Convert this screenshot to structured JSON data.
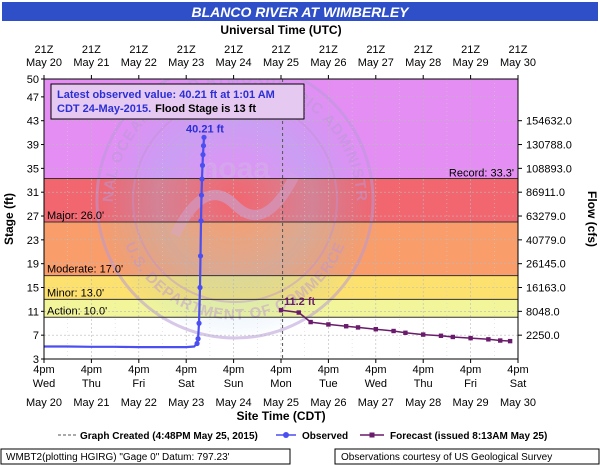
{
  "title": "BLANCO RIVER AT WIMBERLEY",
  "top_axis_title": "Universal Time (UTC)",
  "bottom_axis_title": "Site Time (CDT)",
  "left_axis_title": "Stage (ft)",
  "right_axis_title": "Flow (cfs)",
  "info_box": {
    "line1": "Latest observed value: 40.21 ft at 1:01 AM",
    "line2_blue": "CDT 24-May-2015.",
    "line2_black": "Flood Stage is 13 ft"
  },
  "legend": {
    "created": "Graph Created (4:48PM May 25, 2015)",
    "observed": "Observed",
    "forecast": "Forecast (issued 8:13AM May 25)"
  },
  "footer": {
    "left": "WMBT2(plotting HGIRG) \"Gage 0\" Datum: 797.23'",
    "right": "Observations courtesy of US Geological Survey"
  },
  "watermark": {
    "arc_top": "NATIONAL OCEANIC AND ATMOSPHERIC ADMINISTRATION",
    "arc_bottom": "U.S. DEPARTMENT OF COMMERCE",
    "center": "noaa"
  },
  "colors": {
    "record_band": "#e48ef4",
    "major_band": "#f1666f",
    "moderate_band": "#f99d6b",
    "minor_band": "#fde16f",
    "action_band": "#f2f59a",
    "normal_band": "#ffffff",
    "observed": "#4b4ef0",
    "forecast": "#6a1b6b",
    "title_bar": "#2f4fc8"
  },
  "chart_data": {
    "type": "line",
    "title": "BLANCO RIVER AT WIMBERLEY",
    "xlabel": "Site Time (CDT)",
    "ylabel": "Stage (ft)",
    "y2label": "Flow (cfs)",
    "ylim": [
      3,
      50
    ],
    "y_ticks": [
      "50",
      "47",
      "43",
      "39",
      "35",
      "31",
      "27",
      "23",
      "19",
      "15",
      "11",
      "7",
      "3"
    ],
    "y2_ticks": [
      {
        "stage": 43,
        "label": "154632.0"
      },
      {
        "stage": 39,
        "label": "130788.0"
      },
      {
        "stage": 35,
        "label": "108893.0"
      },
      {
        "stage": 31,
        "label": "86911.0"
      },
      {
        "stage": 27,
        "label": "63279.0"
      },
      {
        "stage": 23,
        "label": "40779.0"
      },
      {
        "stage": 19,
        "label": "26145.0"
      },
      {
        "stage": 15,
        "label": "16163.0"
      },
      {
        "stage": 11,
        "label": "8048.0"
      },
      {
        "stage": 7,
        "label": "2250.0"
      }
    ],
    "bottom_ticks": [
      {
        "time": "4pm",
        "day": "Wed",
        "date": "May 20"
      },
      {
        "time": "4pm",
        "day": "Thu",
        "date": "May 21"
      },
      {
        "time": "4pm",
        "day": "Fri",
        "date": "May 22"
      },
      {
        "time": "4pm",
        "day": "Sat",
        "date": "May 23"
      },
      {
        "time": "4pm",
        "day": "Sun",
        "date": "May 24"
      },
      {
        "time": "4pm",
        "day": "Mon",
        "date": "May 25"
      },
      {
        "time": "4pm",
        "day": "Tue",
        "date": "May 26"
      },
      {
        "time": "4pm",
        "day": "Wed",
        "date": "May 27"
      },
      {
        "time": "4pm",
        "day": "Thu",
        "date": "May 28"
      },
      {
        "time": "4pm",
        "day": "Fri",
        "date": "May 29"
      },
      {
        "time": "4pm",
        "day": "Sat",
        "date": "May 30"
      }
    ],
    "top_ticks": [
      {
        "time": "21Z",
        "date": "May 20"
      },
      {
        "time": "21Z",
        "date": "May 21"
      },
      {
        "time": "21Z",
        "date": "May 22"
      },
      {
        "time": "21Z",
        "date": "May 23"
      },
      {
        "time": "21Z",
        "date": "May 24"
      },
      {
        "time": "21Z",
        "date": "May 25"
      },
      {
        "time": "21Z",
        "date": "May 26"
      },
      {
        "time": "21Z",
        "date": "May 27"
      },
      {
        "time": "21Z",
        "date": "May 28"
      },
      {
        "time": "21Z",
        "date": "May 29"
      },
      {
        "time": "21Z",
        "date": "May 30"
      }
    ],
    "thresholds": [
      {
        "name": "Record",
        "label": "Record: 33.3'",
        "value": 33.3
      },
      {
        "name": "Major",
        "label": "Major: 26.0'",
        "value": 26.0
      },
      {
        "name": "Moderate",
        "label": "Moderate: 17.0'",
        "value": 17.0
      },
      {
        "name": "Minor",
        "label": "Minor: 13.0'",
        "value": 13.0
      },
      {
        "name": "Action",
        "label": "Action: 10.0'",
        "value": 10.0
      }
    ],
    "graph_created": "2015-05-25 16:48",
    "observed_peak": {
      "date": "2015-05-24 01:01",
      "value": 40.21,
      "label": "40.21 ft"
    },
    "forecast_peak": {
      "date": "2015-05-25 16:00",
      "value": 11.2,
      "label": "11.2 ft"
    },
    "series": [
      {
        "name": "Observed",
        "points": [
          [
            "2015-05-20 16:00",
            5.1
          ],
          [
            "2015-05-21 04:00",
            5.1
          ],
          [
            "2015-05-21 16:00",
            5.05
          ],
          [
            "2015-05-22 04:00",
            5.05
          ],
          [
            "2015-05-22 16:00",
            5.0
          ],
          [
            "2015-05-23 04:00",
            5.0
          ],
          [
            "2015-05-23 16:00",
            5.0
          ],
          [
            "2015-05-23 20:00",
            5.1
          ],
          [
            "2015-05-23 21:30",
            5.6
          ],
          [
            "2015-05-23 22:00",
            6.4
          ],
          [
            "2015-05-23 22:30",
            9.0
          ],
          [
            "2015-05-23 23:00",
            15.0
          ],
          [
            "2015-05-23 23:15",
            20.3
          ],
          [
            "2015-05-23 23:30",
            26.2
          ],
          [
            "2015-05-23 23:45",
            30.5
          ],
          [
            "2015-05-24 00:00",
            33.2
          ],
          [
            "2015-05-24 00:15",
            35.5
          ],
          [
            "2015-05-24 00:30",
            37.3
          ],
          [
            "2015-05-24 00:45",
            38.8
          ],
          [
            "2015-05-24 01:01",
            40.21
          ]
        ]
      },
      {
        "name": "Forecast (issued 8:13AM May 25)",
        "points": [
          [
            "2015-05-25 16:00",
            11.2
          ],
          [
            "2015-05-26 01:00",
            10.8
          ],
          [
            "2015-05-26 07:00",
            9.2
          ],
          [
            "2015-05-26 16:00",
            8.8
          ],
          [
            "2015-05-27 01:00",
            8.5
          ],
          [
            "2015-05-27 07:00",
            8.3
          ],
          [
            "2015-05-27 16:00",
            8.0
          ],
          [
            "2015-05-28 01:00",
            7.7
          ],
          [
            "2015-05-28 07:00",
            7.4
          ],
          [
            "2015-05-28 16:00",
            7.1
          ],
          [
            "2015-05-29 01:00",
            6.9
          ],
          [
            "2015-05-29 07:00",
            6.7
          ],
          [
            "2015-05-29 16:00",
            6.5
          ],
          [
            "2015-05-30 01:00",
            6.3
          ],
          [
            "2015-05-30 07:00",
            6.1
          ],
          [
            "2015-05-30 12:00",
            6.0
          ]
        ]
      }
    ]
  }
}
